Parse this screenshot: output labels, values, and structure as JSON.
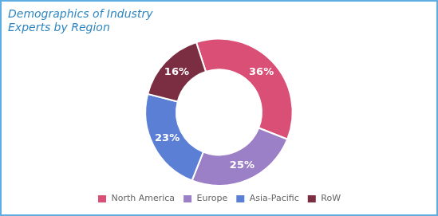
{
  "chart_data": {
    "type": "doughnut",
    "title": "Demographics of Industry\nExperts by Region",
    "categories": [
      "North America",
      "Europe",
      "Asia-Pacific",
      "RoW"
    ],
    "values": [
      36,
      25,
      23,
      16
    ],
    "value_labels": [
      "36%",
      "25%",
      "23%",
      "16%"
    ],
    "colors": [
      "#d94f76",
      "#9b7fc7",
      "#5b7fd4",
      "#7b2d42"
    ],
    "data_labels": true,
    "legend": "bottom"
  }
}
